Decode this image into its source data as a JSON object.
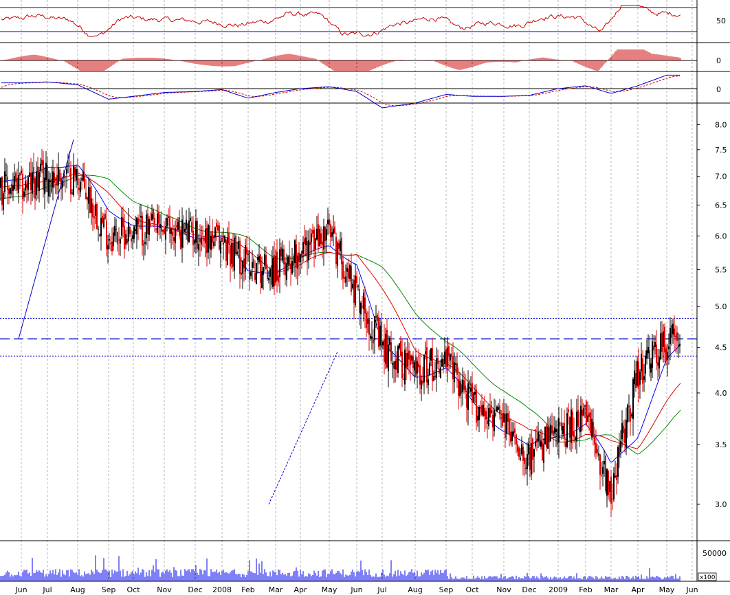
{
  "chart_data": {
    "type": "candlestick",
    "colors": {
      "up_candle": "#000000",
      "down_candle": "#dd0000",
      "rsi": "#cc0000",
      "histogram": "#cc0000",
      "macd": "#0000cc",
      "signal": "#cc0000",
      "ma_short": "#0000ff",
      "ma_mid": "#dd0000",
      "ma_long": "#008800",
      "trendline": "#0000cc",
      "volume": "#0000ee",
      "grid": "#b4b4b4",
      "frame": "#000000"
    },
    "x_axis": {
      "months": [
        "Jun",
        "Jul",
        "Aug",
        "Sep",
        "Oct",
        "Nov",
        "Dec",
        "2008",
        "Feb",
        "Mar",
        "Apr",
        "May",
        "Jun",
        "Jul",
        "Aug",
        "Sep",
        "Oct",
        "Nov",
        "Dec",
        "2009",
        "Feb",
        "Mar",
        "Apr",
        "May",
        "Jun"
      ]
    },
    "price": {
      "scale": "log",
      "ylim": [
        2.75,
        8.4
      ],
      "ticks": [
        "8.0",
        "7.5",
        "7.0",
        "6.5",
        "6.0",
        "5.5",
        "5.0",
        "4.5",
        "4.0",
        "3.5",
        "3.0"
      ],
      "close_by_month": [
        6.8,
        7.0,
        7.0,
        6.0,
        6.1,
        6.1,
        6.05,
        5.9,
        5.6,
        5.5,
        5.8,
        6.05,
        5.2,
        4.5,
        4.25,
        4.35,
        3.9,
        3.7,
        3.4,
        3.6,
        3.75,
        3.1,
        4.2,
        4.55,
        4.85
      ],
      "ma_short_by_month": [
        6.9,
        7.2,
        7.2,
        6.4,
        6.2,
        6.1,
        6.0,
        6.0,
        5.45,
        5.5,
        5.65,
        5.85,
        5.6,
        4.5,
        4.2,
        4.25,
        3.9,
        3.65,
        3.45,
        3.6,
        3.7,
        3.3,
        3.6,
        4.35,
        4.6
      ],
      "ma_mid_by_month": [
        6.8,
        6.95,
        7.05,
        6.7,
        6.3,
        6.1,
        6.05,
        6.0,
        5.75,
        5.5,
        5.55,
        5.75,
        5.75,
        5.2,
        4.5,
        4.3,
        4.05,
        3.8,
        3.6,
        3.55,
        3.6,
        3.5,
        3.5,
        3.9,
        4.2
      ],
      "ma_long_by_month": [
        6.6,
        6.85,
        7.0,
        6.95,
        6.6,
        6.3,
        6.15,
        6.05,
        5.95,
        5.7,
        5.65,
        5.75,
        5.75,
        5.5,
        4.95,
        4.55,
        4.3,
        4.05,
        3.8,
        3.6,
        3.55,
        3.55,
        3.45,
        3.65,
        3.9
      ],
      "horizontal_levels": [
        4.85,
        4.6,
        4.4
      ],
      "trendline": {
        "from": [
          "Aug",
          7.7
        ],
        "to": [
          "Jun",
          4.6
        ]
      },
      "support_line": {
        "from": [
          "Mar",
          3.0
        ],
        "to": [
          "May",
          4.45
        ]
      }
    },
    "rsi": {
      "ticks": [
        "50"
      ],
      "reference_levels": [
        70,
        30
      ]
    },
    "histogram": {
      "ticks": [
        "0"
      ]
    },
    "macd": {
      "ticks": [
        "0"
      ]
    },
    "volume": {
      "ticks": [
        "50000"
      ],
      "unit_label": "x100"
    }
  }
}
